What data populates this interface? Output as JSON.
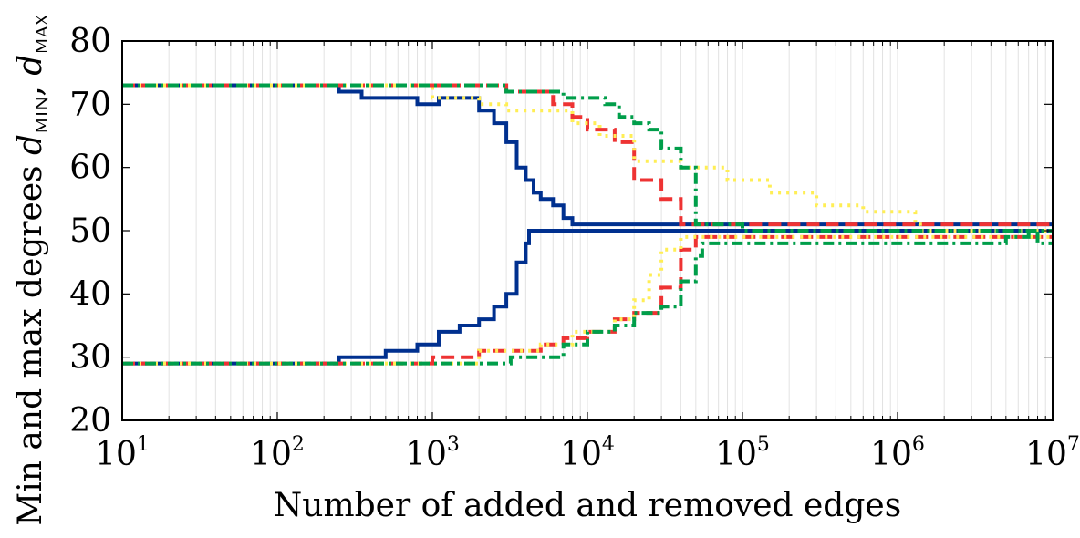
{
  "chart_data": {
    "type": "line",
    "xscale": "log",
    "xlabel": "Number of added and removed edges",
    "ylabel": {
      "prefix": "Min and max degrees ",
      "min_symbol": "d",
      "min_sub": "MIN",
      "sep": ", ",
      "max_symbol": "d",
      "max_sub": "MAX"
    },
    "xlim": [
      10,
      10000000
    ],
    "ylim": [
      20,
      80
    ],
    "xticks": [
      {
        "base": "10",
        "exp": "1",
        "value": 10
      },
      {
        "base": "10",
        "exp": "2",
        "value": 100
      },
      {
        "base": "10",
        "exp": "3",
        "value": 1000
      },
      {
        "base": "10",
        "exp": "4",
        "value": 10000
      },
      {
        "base": "10",
        "exp": "5",
        "value": 100000
      },
      {
        "base": "10",
        "exp": "6",
        "value": 1000000
      },
      {
        "base": "10",
        "exp": "7",
        "value": 10000000
      }
    ],
    "yticks": [
      "20",
      "30",
      "40",
      "50",
      "60",
      "70",
      "80"
    ],
    "grid": "x-minor",
    "series": [
      {
        "name": "series-1-max",
        "color": "#00308f",
        "dash": "solid",
        "x": [
          10,
          250,
          250,
          350,
          600,
          800,
          1100,
          1500,
          2000,
          2500,
          3000,
          3500,
          4000,
          4500,
          5000,
          6000,
          7000,
          8000,
          9000,
          10000000
        ],
        "y": [
          73,
          73,
          72,
          71,
          71,
          70,
          71,
          71,
          69,
          67,
          64,
          60,
          58,
          56,
          55,
          54,
          52,
          51,
          51,
          51
        ]
      },
      {
        "name": "series-1-min",
        "color": "#00308f",
        "dash": "solid",
        "x": [
          10,
          250,
          250,
          500,
          800,
          1100,
          1500,
          2000,
          2500,
          3000,
          3500,
          4000,
          4200,
          10000000
        ],
        "y": [
          29,
          29,
          30,
          31,
          32,
          34,
          35,
          36,
          38,
          40,
          45,
          48,
          50,
          50
        ]
      },
      {
        "name": "series-2-max",
        "color": "#ee3333",
        "dash": "dashed",
        "x": [
          10,
          2000,
          3000,
          4000,
          6000,
          8000,
          10000,
          15000,
          20000,
          30000,
          40000,
          60000,
          100000,
          10000000
        ],
        "y": [
          73,
          73,
          72,
          72,
          70,
          68,
          66,
          64,
          58,
          55,
          51,
          51,
          51,
          51
        ]
      },
      {
        "name": "series-2-min",
        "color": "#ee3333",
        "dash": "dashed",
        "x": [
          10,
          800,
          1000,
          2000,
          3000,
          5000,
          7000,
          10000,
          15000,
          20000,
          30000,
          40000,
          50000,
          100000,
          10000000
        ],
        "y": [
          29,
          29,
          30,
          31,
          31,
          32,
          33,
          34,
          36,
          37,
          41,
          47,
          49,
          49,
          49
        ]
      },
      {
        "name": "series-3-max",
        "color": "#ffee55",
        "dash": "dotted",
        "x": [
          10,
          500,
          1000,
          2000,
          3000,
          5000,
          8000,
          12000,
          20000,
          40000,
          80000,
          150000,
          300000,
          600000,
          1000000,
          1300000,
          1400000,
          10000000
        ],
        "y": [
          73,
          73,
          71,
          70,
          69,
          69,
          67,
          65,
          61,
          60,
          58,
          56,
          54,
          53,
          53,
          51,
          50,
          50
        ]
      },
      {
        "name": "series-3-min",
        "color": "#ffee55",
        "dash": "dotted",
        "x": [
          10,
          1000,
          2000,
          3000,
          5000,
          8000,
          10000,
          15000,
          20000,
          25000,
          30000,
          40000,
          10000000
        ],
        "y": [
          29,
          29,
          31,
          31,
          32,
          34,
          34,
          36,
          39,
          43,
          47,
          49,
          49
        ]
      },
      {
        "name": "series-4-max",
        "color": "#009e4a",
        "dash": "dashdot",
        "x": [
          10,
          2500,
          3000,
          5000,
          7000,
          10000,
          13000,
          16000,
          20000,
          25000,
          30000,
          40000,
          50000,
          70000,
          100000,
          10000000
        ],
        "y": [
          73,
          73,
          72,
          72,
          71,
          71,
          70,
          68,
          67,
          66,
          63,
          60,
          51,
          51,
          50,
          50
        ]
      },
      {
        "name": "series-4-min",
        "color": "#009e4a",
        "dash": "dashdot",
        "x": [
          10,
          3000,
          3200,
          5000,
          7000,
          10000,
          15000,
          20000,
          30000,
          40000,
          45000,
          50000,
          55000,
          70000,
          100000,
          200000,
          500000,
          1000000,
          3000000,
          5000000,
          7000000,
          8000000,
          10000000
        ],
        "y": [
          29,
          29,
          30,
          30,
          32,
          34,
          35,
          37,
          38,
          42,
          42,
          46,
          48,
          48,
          48,
          48,
          48,
          48,
          48,
          49,
          50,
          48,
          48
        ]
      }
    ]
  }
}
